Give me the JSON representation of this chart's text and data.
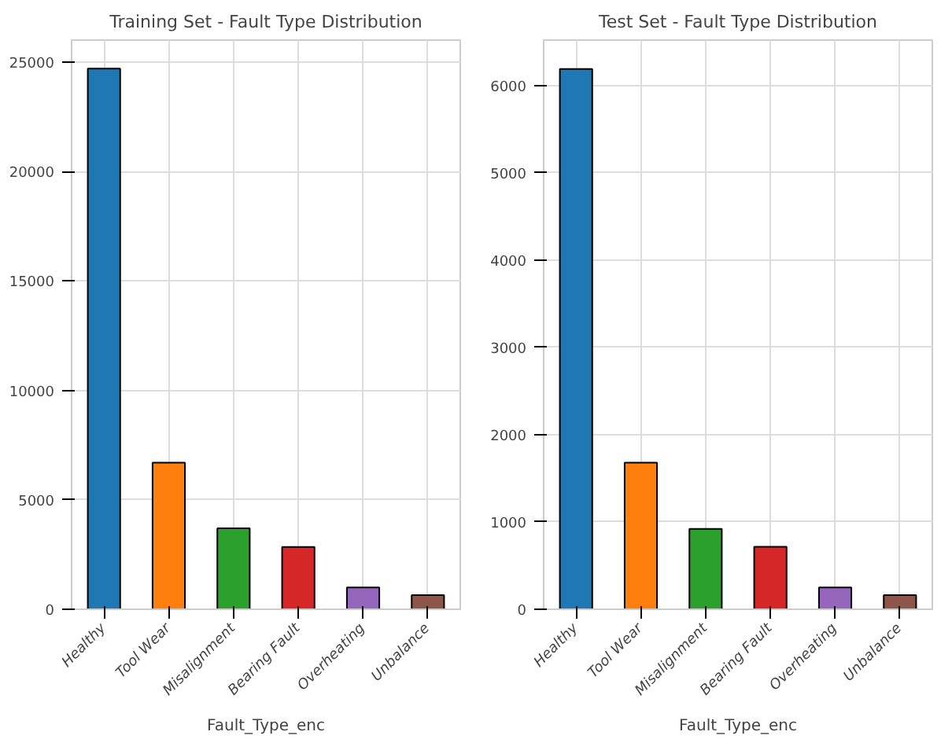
{
  "chart_data": [
    {
      "type": "bar",
      "title": "Training Set - Fault Type Distribution",
      "xlabel": "Fault_Type_enc",
      "categories": [
        "Healthy",
        "Tool Wear",
        "Misalignment",
        "Bearing Fault",
        "Overheating",
        "Unbalance"
      ],
      "values": [
        24700,
        6700,
        3700,
        2850,
        1000,
        650
      ],
      "colors": [
        "#1f77b4",
        "#ff7f0e",
        "#2ca02c",
        "#d62728",
        "#9467bd",
        "#8c564b"
      ],
      "ylim": [
        0,
        26000
      ],
      "yticks": [
        0,
        5000,
        10000,
        15000,
        20000,
        25000
      ],
      "grid": true
    },
    {
      "type": "bar",
      "title": "Test Set - Fault Type Distribution",
      "xlabel": "Fault_Type_enc",
      "categories": [
        "Healthy",
        "Tool Wear",
        "Misalignment",
        "Bearing Fault",
        "Overheating",
        "Unbalance"
      ],
      "values": [
        6190,
        1680,
        920,
        715,
        250,
        162
      ],
      "colors": [
        "#1f77b4",
        "#ff7f0e",
        "#2ca02c",
        "#d62728",
        "#9467bd",
        "#8c564b"
      ],
      "ylim": [
        0,
        6520
      ],
      "yticks": [
        0,
        1000,
        2000,
        3000,
        4000,
        5000,
        6000
      ],
      "grid": true
    }
  ]
}
